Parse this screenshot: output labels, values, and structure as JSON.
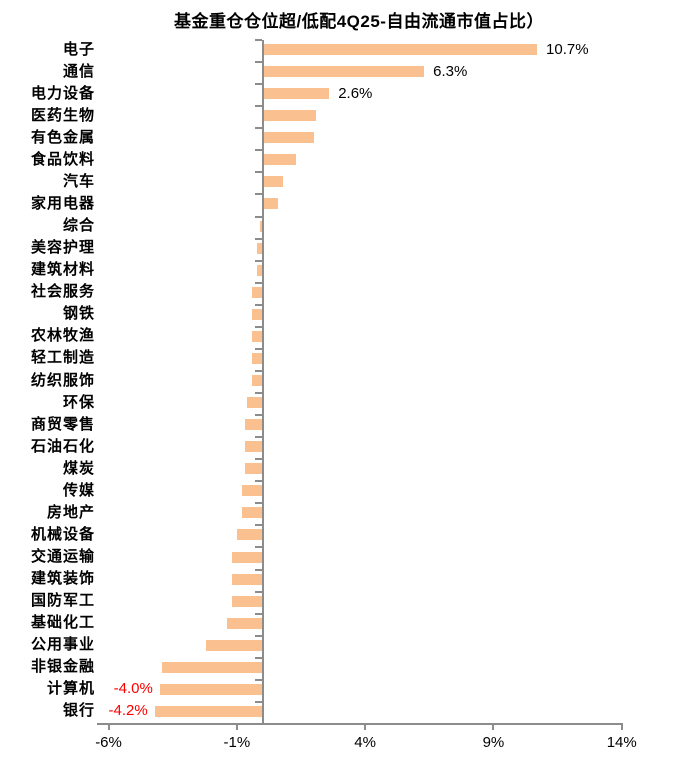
{
  "chart_data": {
    "type": "bar",
    "orientation": "horizontal",
    "title": "基金重仓仓位超/低配4Q25-自由流通市值占比）",
    "categories": [
      "电子",
      "通信",
      "电力设备",
      "医药生物",
      "有色金属",
      "食品饮料",
      "汽车",
      "家用电器",
      "综合",
      "美容护理",
      "建筑材料",
      "社会服务",
      "钢铁",
      "农林牧渔",
      "轻工制造",
      "纺织服饰",
      "环保",
      "商贸零售",
      "石油石化",
      "煤炭",
      "传媒",
      "房地产",
      "机械设备",
      "交通运输",
      "建筑装饰",
      "国防军工",
      "基础化工",
      "公用事业",
      "非银金融",
      "计算机",
      "银行"
    ],
    "values": [
      10.7,
      6.3,
      2.6,
      2.1,
      2.0,
      1.3,
      0.8,
      0.6,
      -0.1,
      -0.2,
      -0.2,
      -0.4,
      -0.4,
      -0.4,
      -0.4,
      -0.4,
      -0.6,
      -0.7,
      -0.7,
      -0.7,
      -0.8,
      -0.8,
      -1.0,
      -1.2,
      -1.2,
      -1.2,
      -1.4,
      -2.2,
      -3.9,
      -4.0,
      -4.2
    ],
    "value_labels": [
      {
        "category": "电子",
        "text": "10.7%",
        "color": "#000000"
      },
      {
        "category": "通信",
        "text": "6.3%",
        "color": "#000000"
      },
      {
        "category": "电力设备",
        "text": "2.6%",
        "color": "#000000"
      },
      {
        "category": "计算机",
        "text": "-4.0%",
        "color": "#FF0000"
      },
      {
        "category": "银行",
        "text": "-4.2%",
        "color": "#FF0000"
      }
    ],
    "x_ticks": [
      {
        "label": "-6%",
        "value": -6
      },
      {
        "label": "-1%",
        "value": -1
      },
      {
        "label": "4%",
        "value": 4
      },
      {
        "label": "9%",
        "value": 9
      },
      {
        "label": "14%",
        "value": 14
      }
    ],
    "xlim": [
      -6.45,
      14
    ],
    "ylabel": "",
    "xlabel": "",
    "grid": false,
    "legend": false,
    "bar_color": "#FAC090",
    "axis_color": "#8C8C8C",
    "text_color": "#000000",
    "negative_label_color": "#FF0000",
    "background_color": "#FFFFFF"
  }
}
